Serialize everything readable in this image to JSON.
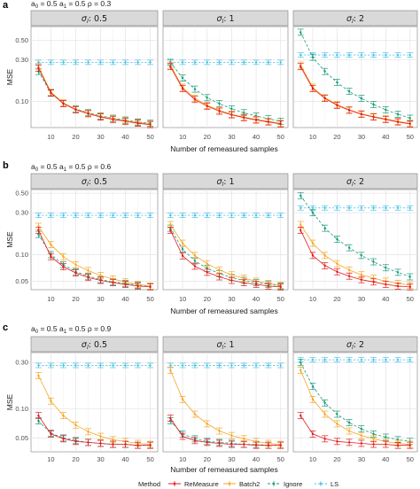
{
  "panel_letters": [
    "a",
    "b",
    "c"
  ],
  "row_params": [
    {
      "a0_label": "a",
      "a0_sub": "0",
      "a0_val": " = 0.5 ",
      "a1_label": "a",
      "a1_sub": "1",
      "a1_val": " = 0.5 ",
      "rho": "ρ = 0.3"
    },
    {
      "a0_label": "a",
      "a0_sub": "0",
      "a0_val": " = 0.5 ",
      "a1_label": "a",
      "a1_sub": "1",
      "a1_val": " = 0.5 ",
      "rho": "ρ = 0.6"
    },
    {
      "a0_label": "a",
      "a0_sub": "0",
      "a0_val": " = 0.5 ",
      "a1_label": "a",
      "a1_sub": "1",
      "a1_val": " = 0.5 ",
      "rho": "ρ = 0.9"
    }
  ],
  "x_axis_title": "Number of remeasured samples",
  "y_axis_title": "MSE",
  "legend": {
    "title": "Method",
    "items": [
      {
        "label": "ReMeasure",
        "color": "#e41a1c"
      },
      {
        "label": "Batch2",
        "color": "#f5a623"
      },
      {
        "label": "Ignore",
        "color": "#1a9a7a"
      },
      {
        "label": "LS",
        "color": "#4dc3e8"
      }
    ]
  },
  "chart_data": [
    {
      "type": "line",
      "row": 0,
      "y_scale": "log",
      "yticks": [
        0.1,
        0.3,
        0.5
      ],
      "ytick_labels": [
        "0.10",
        "0.30",
        "0.50"
      ],
      "ylim": [
        0.05,
        0.72
      ],
      "x": [
        5,
        10,
        15,
        20,
        25,
        30,
        35,
        40,
        45,
        50
      ],
      "xticks": [
        10,
        20,
        30,
        40,
        50
      ],
      "xlim": [
        2,
        53
      ],
      "facets": [
        {
          "sigma_label": "σ",
          "sigma_sub": "l",
          "sigma_value": ": 0.5",
          "series": [
            {
              "name": "ReMeasure",
              "values": [
                0.24,
                0.125,
                0.094,
                0.08,
                0.072,
                0.066,
                0.062,
                0.059,
                0.056,
                0.054
              ]
            },
            {
              "name": "Batch2",
              "values": [
                0.25,
                0.128,
                0.096,
                0.081,
                0.073,
                0.067,
                0.063,
                0.06,
                0.057,
                0.055
              ]
            },
            {
              "name": "Ignore",
              "values": [
                0.22,
                0.124,
                0.095,
                0.082,
                0.074,
                0.068,
                0.064,
                0.061,
                0.058,
                0.056
              ]
            },
            {
              "name": "LS",
              "values": [
                0.28,
                0.28,
                0.28,
                0.28,
                0.28,
                0.28,
                0.28,
                0.28,
                0.28,
                0.28
              ]
            }
          ]
        },
        {
          "sigma_label": "σ",
          "sigma_sub": "l",
          "sigma_value": ": 1",
          "series": [
            {
              "name": "ReMeasure",
              "values": [
                0.25,
                0.14,
                0.105,
                0.088,
                0.077,
                0.07,
                0.065,
                0.061,
                0.058,
                0.055
              ]
            },
            {
              "name": "Batch2",
              "values": [
                0.26,
                0.145,
                0.108,
                0.09,
                0.079,
                0.071,
                0.066,
                0.062,
                0.059,
                0.056
              ]
            },
            {
              "name": "Ignore",
              "values": [
                0.28,
                0.185,
                0.138,
                0.11,
                0.094,
                0.082,
                0.074,
                0.068,
                0.063,
                0.059
              ]
            },
            {
              "name": "LS",
              "values": [
                0.28,
                0.28,
                0.28,
                0.28,
                0.28,
                0.28,
                0.28,
                0.28,
                0.28,
                0.28
              ]
            }
          ]
        },
        {
          "sigma_label": "σ",
          "sigma_sub": "l",
          "sigma_value": ": 2",
          "series": [
            {
              "name": "ReMeasure",
              "values": [
                0.25,
                0.14,
                0.108,
                0.09,
                0.079,
                0.071,
                0.066,
                0.062,
                0.058,
                0.055
              ]
            },
            {
              "name": "Batch2",
              "values": [
                0.26,
                0.145,
                0.11,
                0.092,
                0.08,
                0.072,
                0.067,
                0.063,
                0.059,
                0.056
              ]
            },
            {
              "name": "Ignore",
              "values": [
                0.62,
                0.32,
                0.22,
                0.165,
                0.13,
                0.108,
                0.092,
                0.08,
                0.071,
                0.064
              ]
            },
            {
              "name": "LS",
              "values": [
                0.34,
                0.34,
                0.34,
                0.34,
                0.34,
                0.34,
                0.34,
                0.34,
                0.34,
                0.34
              ]
            }
          ]
        }
      ]
    },
    {
      "type": "line",
      "row": 1,
      "y_scale": "log",
      "yticks": [
        0.05,
        0.1,
        0.3,
        0.5
      ],
      "ytick_labels": [
        "0.05",
        "0.10",
        "0.30",
        "0.50"
      ],
      "ylim": [
        0.04,
        0.55
      ],
      "x": [
        5,
        10,
        15,
        20,
        25,
        30,
        35,
        40,
        45,
        50
      ],
      "xticks": [
        10,
        20,
        30,
        40,
        50
      ],
      "xlim": [
        2,
        53
      ],
      "facets": [
        {
          "sigma_label": "σ",
          "sigma_sub": "l",
          "sigma_value": ": 0.5",
          "series": [
            {
              "name": "ReMeasure",
              "values": [
                0.19,
                0.095,
                0.073,
                0.062,
                0.055,
                0.051,
                0.048,
                0.046,
                0.044,
                0.043
              ]
            },
            {
              "name": "Batch2",
              "values": [
                0.21,
                0.13,
                0.095,
                0.077,
                0.066,
                0.058,
                0.053,
                0.049,
                0.046,
                0.044
              ]
            },
            {
              "name": "Ignore",
              "values": [
                0.17,
                0.1,
                0.077,
                0.064,
                0.057,
                0.052,
                0.049,
                0.047,
                0.045,
                0.044
              ]
            },
            {
              "name": "LS",
              "values": [
                0.28,
                0.28,
                0.28,
                0.28,
                0.28,
                0.28,
                0.28,
                0.28,
                0.28,
                0.28
              ]
            }
          ]
        },
        {
          "sigma_label": "σ",
          "sigma_sub": "l",
          "sigma_value": ": 1",
          "series": [
            {
              "name": "ReMeasure",
              "values": [
                0.19,
                0.097,
                0.074,
                0.063,
                0.056,
                0.051,
                0.048,
                0.046,
                0.044,
                0.043
              ]
            },
            {
              "name": "Batch2",
              "values": [
                0.22,
                0.135,
                0.098,
                0.079,
                0.067,
                0.059,
                0.054,
                0.05,
                0.047,
                0.045
              ]
            },
            {
              "name": "Ignore",
              "values": [
                0.2,
                0.115,
                0.085,
                0.07,
                0.061,
                0.055,
                0.051,
                0.048,
                0.046,
                0.044
              ]
            },
            {
              "name": "LS",
              "values": [
                0.28,
                0.28,
                0.28,
                0.28,
                0.28,
                0.28,
                0.28,
                0.28,
                0.28,
                0.28
              ]
            }
          ]
        },
        {
          "sigma_label": "σ",
          "sigma_sub": "l",
          "sigma_value": ": 2",
          "series": [
            {
              "name": "ReMeasure",
              "values": [
                0.19,
                0.098,
                0.075,
                0.064,
                0.057,
                0.052,
                0.049,
                0.046,
                0.044,
                0.043
              ]
            },
            {
              "name": "Batch2",
              "values": [
                0.22,
                0.135,
                0.098,
                0.079,
                0.067,
                0.059,
                0.054,
                0.05,
                0.047,
                0.045
              ]
            },
            {
              "name": "Ignore",
              "values": [
                0.47,
                0.3,
                0.2,
                0.15,
                0.12,
                0.098,
                0.083,
                0.071,
                0.063,
                0.056
              ]
            },
            {
              "name": "LS",
              "values": [
                0.34,
                0.34,
                0.34,
                0.34,
                0.34,
                0.34,
                0.34,
                0.34,
                0.34,
                0.34
              ]
            }
          ]
        }
      ]
    },
    {
      "type": "line",
      "row": 2,
      "y_scale": "log",
      "yticks": [
        0.05,
        0.1,
        0.3
      ],
      "ytick_labels": [
        "0.05",
        "0.10",
        "0.30"
      ],
      "ylim": [
        0.036,
        0.38
      ],
      "x": [
        5,
        10,
        15,
        20,
        25,
        30,
        35,
        40,
        45,
        50
      ],
      "xticks": [
        10,
        20,
        30,
        40,
        50
      ],
      "xlim": [
        2,
        53
      ],
      "facets": [
        {
          "sigma_label": "σ",
          "sigma_sub": "l",
          "sigma_value": ": 0.5",
          "series": [
            {
              "name": "ReMeasure",
              "values": [
                0.085,
                0.055,
                0.049,
                0.046,
                0.045,
                0.044,
                0.043,
                0.043,
                0.042,
                0.042
              ]
            },
            {
              "name": "Batch2",
              "values": [
                0.22,
                0.12,
                0.085,
                0.068,
                0.058,
                0.052,
                0.048,
                0.046,
                0.044,
                0.043
              ]
            },
            {
              "name": "Ignore",
              "values": [
                0.075,
                0.056,
                0.05,
                0.047,
                0.045,
                0.044,
                0.043,
                0.043,
                0.042,
                0.042
              ]
            },
            {
              "name": "LS",
              "values": [
                0.28,
                0.28,
                0.28,
                0.28,
                0.28,
                0.28,
                0.28,
                0.28,
                0.28,
                0.28
              ]
            }
          ]
        },
        {
          "sigma_label": "σ",
          "sigma_sub": "l",
          "sigma_value": ": 1",
          "series": [
            {
              "name": "ReMeasure",
              "values": [
                0.08,
                0.052,
                0.047,
                0.045,
                0.044,
                0.043,
                0.043,
                0.042,
                0.042,
                0.042
              ]
            },
            {
              "name": "Batch2",
              "values": [
                0.25,
                0.125,
                0.088,
                0.07,
                0.059,
                0.053,
                0.049,
                0.046,
                0.044,
                0.043
              ]
            },
            {
              "name": "Ignore",
              "values": [
                0.075,
                0.055,
                0.049,
                0.046,
                0.045,
                0.044,
                0.043,
                0.043,
                0.042,
                0.042
              ]
            },
            {
              "name": "LS",
              "values": [
                0.28,
                0.28,
                0.28,
                0.28,
                0.28,
                0.28,
                0.28,
                0.28,
                0.28,
                0.28
              ]
            }
          ]
        },
        {
          "sigma_label": "σ",
          "sigma_sub": "l",
          "sigma_value": ": 2",
          "series": [
            {
              "name": "ReMeasure",
              "values": [
                0.085,
                0.055,
                0.049,
                0.046,
                0.045,
                0.044,
                0.043,
                0.043,
                0.042,
                0.042
              ]
            },
            {
              "name": "Batch2",
              "values": [
                0.25,
                0.125,
                0.088,
                0.07,
                0.059,
                0.053,
                0.049,
                0.046,
                0.044,
                0.043
              ]
            },
            {
              "name": "Ignore",
              "values": [
                0.3,
                0.17,
                0.115,
                0.088,
                0.072,
                0.062,
                0.055,
                0.051,
                0.048,
                0.046
              ]
            },
            {
              "name": "LS",
              "values": [
                0.32,
                0.32,
                0.32,
                0.32,
                0.32,
                0.32,
                0.32,
                0.32,
                0.32,
                0.32
              ]
            }
          ]
        }
      ]
    }
  ]
}
